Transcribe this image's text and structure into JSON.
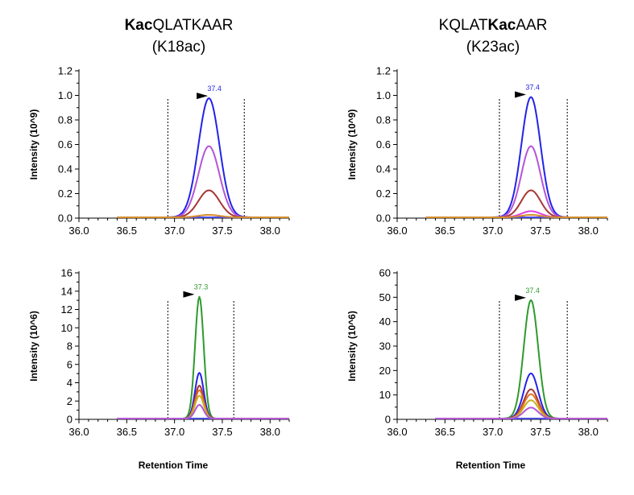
{
  "columns": [
    {
      "bold": "Kac",
      "rest": "QLATKAAR",
      "prefix": "",
      "sub": "(K18ac)"
    },
    {
      "prefix": "KQLAT",
      "bold": "Kac",
      "rest": "AAR",
      "sub": "(K23ac)"
    }
  ],
  "xlabel": "Retention Time",
  "chart_data": [
    {
      "type": "line",
      "ylabel": "Intensity (10^9)",
      "xlim": [
        36.0,
        38.2
      ],
      "ylim": [
        0,
        1.2
      ],
      "xticks": [
        "36.0",
        "36.5",
        "37.0",
        "37.5",
        "38.0"
      ],
      "yticks": [
        "0.0",
        "0.2",
        "0.4",
        "0.6",
        "0.8",
        "1.0",
        "1.2"
      ],
      "apex_label": "37.4",
      "apex_label_color": "#2323e8",
      "apex_x": 37.4,
      "window": [
        36.93,
        37.73
      ],
      "baseline_range": [
        36.4,
        38.2
      ],
      "series": [
        {
          "color": "#2323e8",
          "peak": 0.97,
          "center": 37.36,
          "sigma": 0.11
        },
        {
          "color": "#b455d8",
          "peak": 0.58,
          "center": 37.36,
          "sigma": 0.11
        },
        {
          "color": "#a73636",
          "peak": 0.22,
          "center": 37.36,
          "sigma": 0.11
        },
        {
          "color": "#d48c2c",
          "peak": 0.02,
          "center": 37.36,
          "sigma": 0.11
        }
      ]
    },
    {
      "type": "line",
      "ylabel": "Intensity (10^9)",
      "xlim": [
        36.0,
        38.2
      ],
      "ylim": [
        0,
        1.2
      ],
      "xticks": [
        "36.0",
        "36.5",
        "37.0",
        "37.5",
        "38.0"
      ],
      "yticks": [
        "0.0",
        "0.2",
        "0.4",
        "0.6",
        "0.8",
        "1.0",
        "1.2"
      ],
      "apex_label": "37.4",
      "apex_label_color": "#2323e8",
      "apex_x": 37.4,
      "window": [
        37.07,
        37.78
      ],
      "baseline_range": [
        36.3,
        38.2
      ],
      "series": [
        {
          "color": "#2323e8",
          "peak": 0.98,
          "center": 37.4,
          "sigma": 0.1
        },
        {
          "color": "#b455d8",
          "peak": 0.58,
          "center": 37.4,
          "sigma": 0.1
        },
        {
          "color": "#a73636",
          "peak": 0.22,
          "center": 37.4,
          "sigma": 0.1
        },
        {
          "color": "#e040e0",
          "peak": 0.05,
          "center": 37.4,
          "sigma": 0.1
        },
        {
          "color": "#d48c2c",
          "peak": 0.02,
          "center": 37.4,
          "sigma": 0.1
        }
      ]
    },
    {
      "type": "line",
      "ylabel": "Intensity (10^6)",
      "xlim": [
        36.0,
        38.2
      ],
      "ylim": [
        0,
        16
      ],
      "xticks": [
        "36.0",
        "36.5",
        "37.0",
        "37.5",
        "38.0"
      ],
      "yticks": [
        "0",
        "2",
        "4",
        "6",
        "8",
        "10",
        "12",
        "14",
        "16"
      ],
      "apex_label": "37.3",
      "apex_label_color": "#2e9a2e",
      "apex_x": 37.26,
      "window": [
        36.93,
        37.62
      ],
      "baseline_range": [
        36.4,
        38.2
      ],
      "series": [
        {
          "color": "#2e9a2e",
          "peak": 13.3,
          "center": 37.26,
          "sigma": 0.045
        },
        {
          "color": "#2323e8",
          "peak": 5.0,
          "center": 37.26,
          "sigma": 0.045
        },
        {
          "color": "#a73636",
          "peak": 3.6,
          "center": 37.26,
          "sigma": 0.045
        },
        {
          "color": "#e07020",
          "peak": 3.1,
          "center": 37.26,
          "sigma": 0.045
        },
        {
          "color": "#c8b020",
          "peak": 2.5,
          "center": 37.26,
          "sigma": 0.045
        },
        {
          "color": "#b455d8",
          "peak": 1.5,
          "center": 37.26,
          "sigma": 0.045
        }
      ]
    },
    {
      "type": "line",
      "ylabel": "Intensity (10^6)",
      "xlim": [
        36.0,
        38.2
      ],
      "ylim": [
        0,
        60
      ],
      "xticks": [
        "36.0",
        "36.5",
        "37.0",
        "37.5",
        "38.0"
      ],
      "yticks": [
        "0",
        "10",
        "20",
        "30",
        "40",
        "50",
        "60"
      ],
      "apex_label": "37.4",
      "apex_label_color": "#2e9a2e",
      "apex_x": 37.4,
      "window": [
        37.07,
        37.78
      ],
      "baseline_range": [
        36.4,
        38.2
      ],
      "series": [
        {
          "color": "#2e9a2e",
          "peak": 48.5,
          "center": 37.4,
          "sigma": 0.075
        },
        {
          "color": "#2323e8",
          "peak": 18.5,
          "center": 37.4,
          "sigma": 0.075
        },
        {
          "color": "#a73636",
          "peak": 12.0,
          "center": 37.4,
          "sigma": 0.075
        },
        {
          "color": "#e07020",
          "peak": 10.0,
          "center": 37.4,
          "sigma": 0.075
        },
        {
          "color": "#c8b020",
          "peak": 7.5,
          "center": 37.4,
          "sigma": 0.075
        },
        {
          "color": "#b455d8",
          "peak": 4.5,
          "center": 37.4,
          "sigma": 0.075
        }
      ]
    }
  ]
}
